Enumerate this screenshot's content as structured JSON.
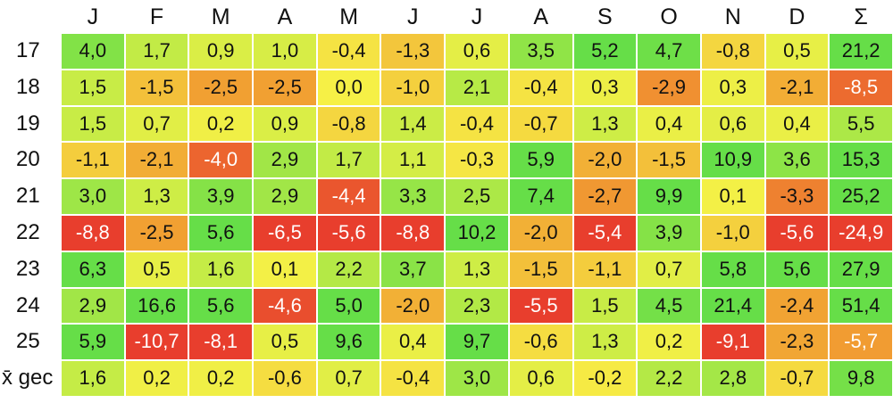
{
  "header": [
    "J",
    "F",
    "M",
    "A",
    "M",
    "J",
    "J",
    "A",
    "S",
    "O",
    "N",
    "D",
    "Σ"
  ],
  "rows": [
    {
      "label": "17",
      "cells": [
        "4,0",
        "1,7",
        "0,9",
        "1,0",
        "-0,4",
        "-1,3",
        "0,6",
        "3,5",
        "5,2",
        "4,7",
        "-0,8",
        "0,5",
        "21,2"
      ]
    },
    {
      "label": "18",
      "cells": [
        "1,5",
        "-1,5",
        "-2,5",
        "-2,5",
        "0,0",
        "-1,0",
        "2,1",
        "-0,4",
        "0,3",
        "-2,9",
        "0,3",
        "-2,1",
        "-8,5"
      ]
    },
    {
      "label": "19",
      "cells": [
        "1,5",
        "0,7",
        "0,2",
        "0,9",
        "-0,8",
        "1,4",
        "-0,4",
        "-0,7",
        "1,3",
        "0,4",
        "0,6",
        "0,4",
        "5,5"
      ]
    },
    {
      "label": "20",
      "cells": [
        "-1,1",
        "-2,1",
        "-4,0",
        "2,9",
        "1,7",
        "1,1",
        "-0,3",
        "5,9",
        "-2,0",
        "-1,5",
        "10,9",
        "3,6",
        "15,3"
      ]
    },
    {
      "label": "21",
      "cells": [
        "3,0",
        "1,3",
        "3,9",
        "2,9",
        "-4,4",
        "3,3",
        "2,5",
        "7,4",
        "-2,7",
        "9,9",
        "0,1",
        "-3,3",
        "25,2"
      ]
    },
    {
      "label": "22",
      "cells": [
        "-8,8",
        "-2,5",
        "5,6",
        "-6,5",
        "-5,6",
        "-8,8",
        "10,2",
        "-2,0",
        "-5,4",
        "3,9",
        "-1,0",
        "-5,6",
        "-24,9"
      ]
    },
    {
      "label": "23",
      "cells": [
        "6,3",
        "0,5",
        "1,6",
        "0,1",
        "2,2",
        "3,7",
        "1,3",
        "-1,5",
        "-1,1",
        "0,7",
        "5,8",
        "5,6",
        "27,9"
      ]
    },
    {
      "label": "24",
      "cells": [
        "2,9",
        "16,6",
        "5,6",
        "-4,6",
        "5,0",
        "-2,0",
        "2,3",
        "-5,5",
        "1,5",
        "4,5",
        "21,4",
        "-2,4",
        "51,4"
      ]
    },
    {
      "label": "25",
      "cells": [
        "5,9",
        "-10,7",
        "-8,1",
        "0,5",
        "9,6",
        "0,4",
        "9,7",
        "-0,6",
        "1,3",
        "0,2",
        "-9,1",
        "-2,3",
        "-5,7"
      ]
    },
    {
      "label": "x̄ gec",
      "cells": [
        "1,6",
        "0,2",
        "0,2",
        "-0,6",
        "0,7",
        "-0,4",
        "3,0",
        "0,6",
        "-0,2",
        "2,2",
        "2,8",
        "-0,7",
        "9,8"
      ]
    }
  ]
}
